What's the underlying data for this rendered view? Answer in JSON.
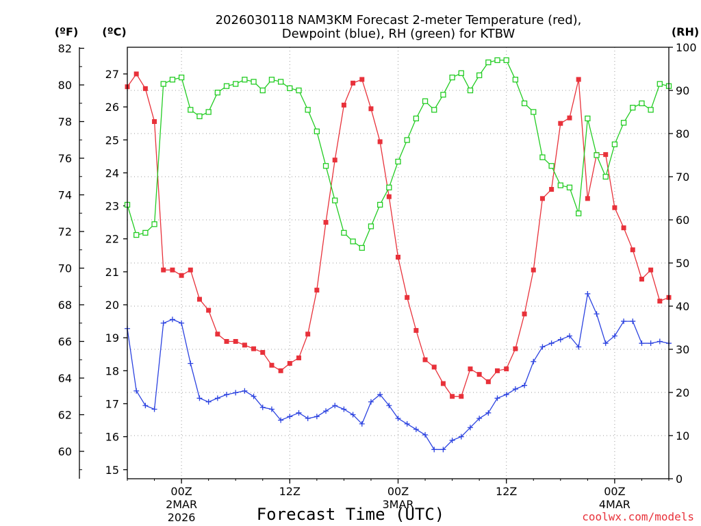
{
  "chart_data": {
    "type": "line",
    "title_line1": "2026030118 NAM3KM Forecast 2-meter Temperature (red),",
    "title_line2": "Dewpoint (blue), RH (green) for KTBW",
    "xlabel": "Forecast Time (UTC)",
    "credit": "coolwx.com/models",
    "axes": {
      "fahrenheit_label": "(ºF)",
      "celsius_label": "(ºC)",
      "rh_label": "(RH)",
      "fahrenheit_ticks": [
        "82",
        "80",
        "78",
        "76",
        "74",
        "72",
        "70",
        "68",
        "66",
        "64",
        "62",
        "60"
      ],
      "celsius_ticks": [
        "27",
        "26",
        "25",
        "24",
        "23",
        "22",
        "21",
        "20",
        "19",
        "18",
        "17",
        "16",
        "15"
      ],
      "rh_ticks": [
        "100",
        "90",
        "80",
        "70",
        "60",
        "50",
        "40",
        "30",
        "20",
        "10",
        "0"
      ],
      "x_ticks": [
        {
          "hour": 6,
          "label": "00Z",
          "sub1": "2MAR",
          "sub2": "2026"
        },
        {
          "hour": 18,
          "label": "12Z",
          "sub1": "",
          "sub2": ""
        },
        {
          "hour": 30,
          "label": "00Z",
          "sub1": "3MAR",
          "sub2": ""
        },
        {
          "hour": 42,
          "label": "12Z",
          "sub1": "",
          "sub2": ""
        },
        {
          "hour": 54,
          "label": "00Z",
          "sub1": "4MAR",
          "sub2": ""
        }
      ],
      "x_range_hours": [
        0,
        60
      ],
      "temperature_range_f": [
        58.5,
        82.5
      ],
      "rh_range": [
        0,
        100
      ],
      "grid": true
    },
    "x_hours": [
      0,
      1,
      2,
      3,
      4,
      5,
      6,
      7,
      8,
      9,
      10,
      11,
      12,
      13,
      14,
      15,
      16,
      17,
      18,
      19,
      20,
      21,
      22,
      23,
      24,
      25,
      26,
      27,
      28,
      29,
      30,
      31,
      32,
      33,
      34,
      35,
      36,
      37,
      38,
      39,
      40,
      41,
      42,
      43,
      44,
      45,
      46,
      47,
      48,
      49,
      50,
      51,
      52,
      53,
      54,
      55,
      56,
      57,
      58,
      59,
      60
    ],
    "series": [
      {
        "name": "Temperature",
        "color": "#e8313a",
        "marker": "filled-square",
        "axis": "fahrenheit",
        "values": [
          79.9,
          80.6,
          79.8,
          78.0,
          69.9,
          69.9,
          69.6,
          69.9,
          68.3,
          67.7,
          66.4,
          66.0,
          66.0,
          65.8,
          65.6,
          65.4,
          64.7,
          64.4,
          64.8,
          65.1,
          66.4,
          68.8,
          72.5,
          75.9,
          78.9,
          80.1,
          80.3,
          78.7,
          76.9,
          73.9,
          70.6,
          68.4,
          66.6,
          65.0,
          64.6,
          63.7,
          63.0,
          63.0,
          64.5,
          64.2,
          63.8,
          64.4,
          64.5,
          65.6,
          67.5,
          69.9,
          73.8,
          74.3,
          77.9,
          78.2,
          80.3,
          73.8,
          76.2,
          76.2,
          73.3,
          72.2,
          71.0,
          69.4,
          69.9,
          68.2,
          68.4
        ]
      },
      {
        "name": "Dewpoint",
        "color": "#2b42e0",
        "marker": "plus",
        "axis": "fahrenheit",
        "values": [
          66.7,
          63.3,
          62.5,
          62.3,
          67.0,
          67.2,
          67.0,
          64.8,
          62.9,
          62.7,
          62.9,
          63.1,
          63.2,
          63.3,
          63.0,
          62.4,
          62.3,
          61.7,
          61.9,
          62.1,
          61.8,
          61.9,
          62.2,
          62.5,
          62.3,
          62.0,
          61.5,
          62.7,
          63.1,
          62.5,
          61.8,
          61.5,
          61.2,
          60.9,
          60.1,
          60.1,
          60.6,
          60.8,
          61.3,
          61.8,
          62.1,
          62.9,
          63.1,
          63.4,
          63.6,
          64.9,
          65.7,
          65.9,
          66.1,
          66.3,
          65.7,
          68.6,
          67.5,
          65.9,
          66.3,
          67.1,
          67.1,
          65.9,
          65.9,
          66.0,
          65.9
        ]
      },
      {
        "name": "RH",
        "color": "#22cc22",
        "marker": "open-square",
        "axis": "rh",
        "values": [
          63.5,
          56.5,
          57.0,
          59.0,
          91.5,
          92.5,
          93.0,
          85.5,
          84.0,
          85.0,
          89.5,
          91.0,
          91.5,
          92.5,
          92.0,
          90.0,
          92.5,
          92.0,
          90.5,
          90.0,
          85.5,
          80.5,
          72.5,
          64.5,
          57.0,
          55.0,
          53.5,
          58.5,
          63.5,
          67.5,
          73.5,
          78.5,
          83.5,
          87.5,
          85.5,
          89.0,
          93.0,
          94.0,
          90.0,
          93.5,
          96.5,
          97.0,
          97.0,
          92.5,
          87.0,
          85.0,
          74.5,
          72.5,
          68.0,
          67.5,
          61.5,
          83.5,
          75.0,
          70.0,
          77.5,
          82.5,
          86.0,
          87.0,
          85.5,
          91.5,
          91.0
        ]
      }
    ]
  }
}
